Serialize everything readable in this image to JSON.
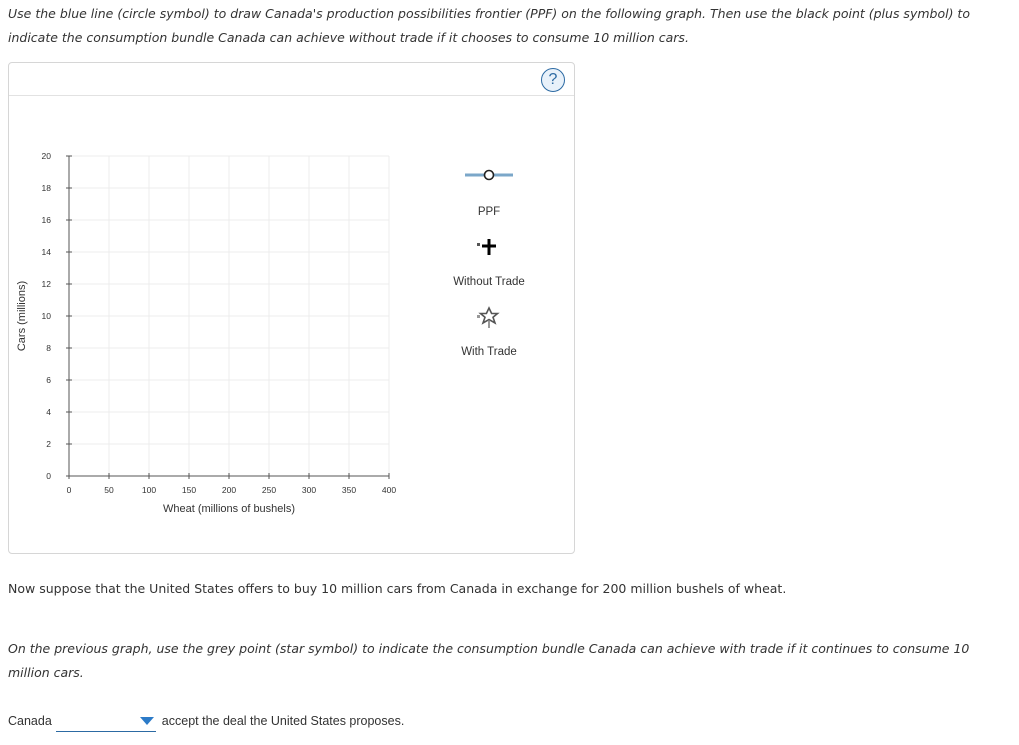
{
  "instructions": {
    "part1": "Use the blue line (circle symbol) to draw Canada's production possibilities frontier (PPF) on the following graph. Then use the black point (plus symbol) to indicate the consumption bundle Canada can achieve without trade if it chooses to consume 10 million cars.",
    "offer": "Now suppose that the United States offers to buy 10 million cars from Canada in exchange for 200 million bushels of wheat.",
    "part2": "On the previous graph, use the grey point (star symbol) to indicate the consumption bundle Canada can achieve with trade if it continues to consume 10 million cars."
  },
  "panel": {
    "help_label": "?"
  },
  "chart_data": {
    "type": "scatter",
    "xlabel": "Wheat (millions of bushels)",
    "ylabel": "Cars (millions)",
    "xlim": [
      0,
      400
    ],
    "ylim": [
      0,
      20
    ],
    "x_ticks": [
      0,
      50,
      100,
      150,
      200,
      250,
      300,
      350,
      400
    ],
    "y_ticks": [
      0,
      2,
      4,
      6,
      8,
      10,
      12,
      14,
      16,
      18,
      20
    ],
    "grid": true,
    "series": [],
    "legend_position": "right"
  },
  "legend": {
    "items": [
      {
        "label": "PPF",
        "tool": "blue-line-circle",
        "color": "#7ba7c9"
      },
      {
        "label": "Without Trade",
        "tool": "black-point-plus",
        "color": "#000000"
      },
      {
        "label": "With Trade",
        "tool": "grey-point-star",
        "color": "#555555"
      }
    ]
  },
  "question": {
    "prefix": "Canada",
    "dropdown_value": "",
    "suffix": "accept the deal the United States proposes."
  }
}
